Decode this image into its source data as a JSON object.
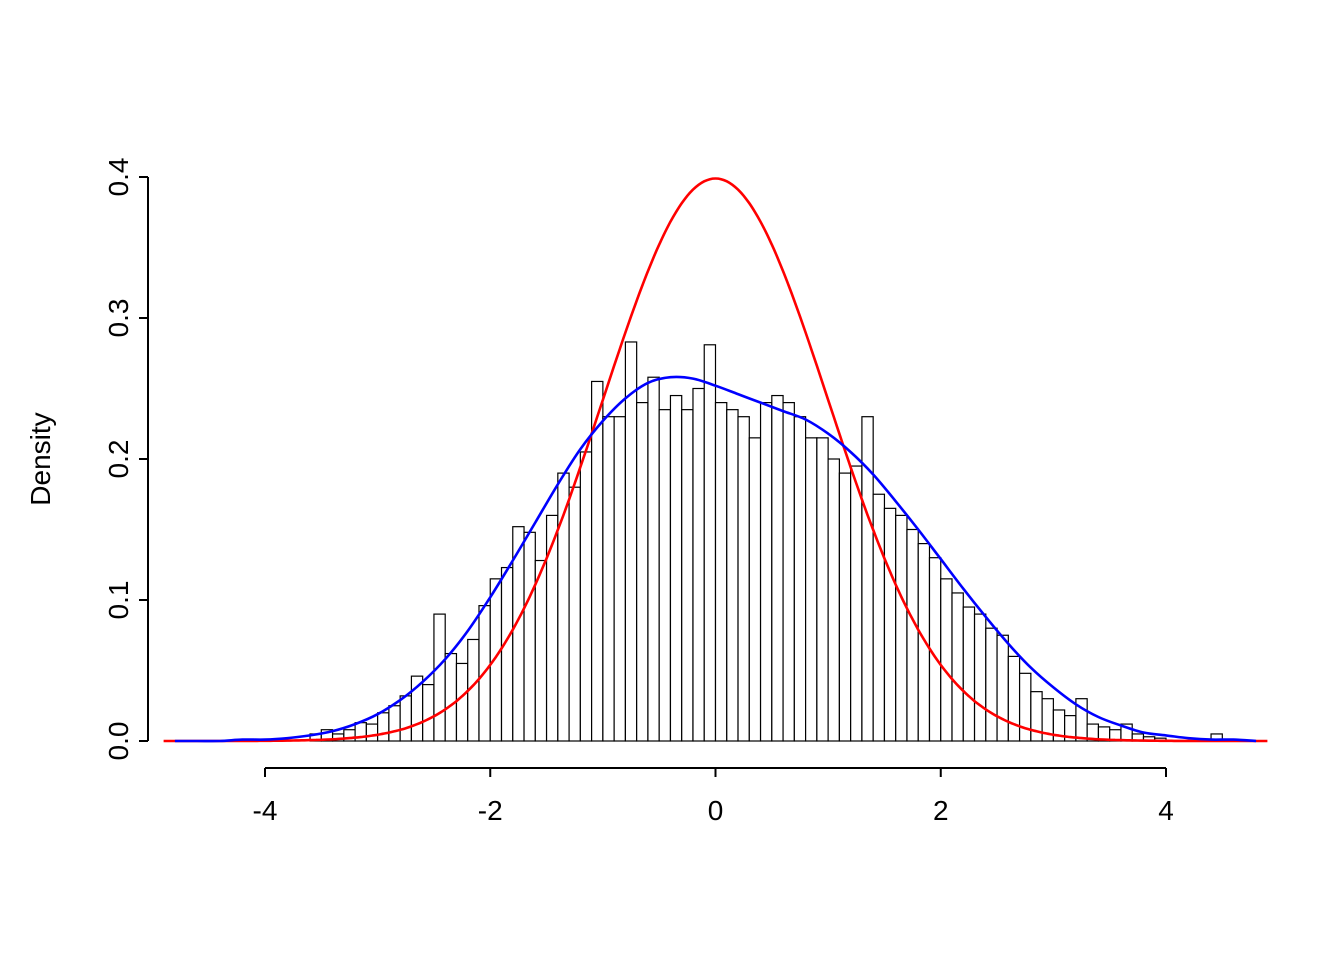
{
  "chart_data": {
    "type": "bar",
    "subtype": "histogram-with-density-curves",
    "title": "",
    "xlabel": "",
    "ylabel": "Density",
    "xlim": [
      -4,
      4
    ],
    "ylim": [
      0,
      0.4
    ],
    "grid": false,
    "legend": "none",
    "x_tick_values": [
      -4,
      -2,
      0,
      2,
      4
    ],
    "x_tick_labels": [
      "-4",
      "-2",
      "0",
      "2",
      "4"
    ],
    "y_tick_values": [
      0.0,
      0.1,
      0.2,
      0.3,
      0.4
    ],
    "y_tick_labels": [
      "0.0",
      "0.1",
      "0.2",
      "0.3",
      "0.4"
    ],
    "histogram": {
      "bin_start": -3.6,
      "bin_width": 0.1,
      "bar_fill": "#ffffff",
      "bar_stroke": "#000000",
      "densities": [
        0.005,
        0.008,
        0.005,
        0.008,
        0.013,
        0.012,
        0.02,
        0.025,
        0.032,
        0.046,
        0.04,
        0.09,
        0.062,
        0.055,
        0.072,
        0.096,
        0.115,
        0.123,
        0.152,
        0.148,
        0.128,
        0.16,
        0.19,
        0.18,
        0.205,
        0.255,
        0.23,
        0.23,
        0.283,
        0.24,
        0.258,
        0.235,
        0.245,
        0.235,
        0.25,
        0.281,
        0.24,
        0.235,
        0.23,
        0.215,
        0.24,
        0.245,
        0.24,
        0.23,
        0.215,
        0.215,
        0.2,
        0.19,
        0.195,
        0.23,
        0.175,
        0.165,
        0.16,
        0.15,
        0.14,
        0.13,
        0.115,
        0.105,
        0.095,
        0.09,
        0.08,
        0.075,
        0.06,
        0.048,
        0.035,
        0.03,
        0.022,
        0.018,
        0.03,
        0.012,
        0.01,
        0.008,
        0.012,
        0.005,
        0.003,
        0.002,
        0.0,
        0.0,
        0.0,
        0.0,
        0.005
      ]
    },
    "curves": [
      {
        "name": "kernel-density-estimate",
        "color": "#0000ff",
        "x_start": -4.8,
        "x_step": 0.2,
        "y": [
          0.0,
          0.0,
          0.0,
          0.001,
          0.001,
          0.002,
          0.004,
          0.007,
          0.012,
          0.019,
          0.029,
          0.042,
          0.058,
          0.078,
          0.102,
          0.128,
          0.155,
          0.182,
          0.207,
          0.227,
          0.243,
          0.254,
          0.258,
          0.257,
          0.252,
          0.246,
          0.24,
          0.234,
          0.228,
          0.218,
          0.205,
          0.189,
          0.17,
          0.15,
          0.129,
          0.108,
          0.088,
          0.069,
          0.052,
          0.038,
          0.026,
          0.017,
          0.011,
          0.006,
          0.004,
          0.002,
          0.001,
          0.001,
          0.0
        ]
      },
      {
        "name": "standard-normal-density",
        "color": "#ff0000",
        "distribution": "normal",
        "mean": 0,
        "sd": 1,
        "peak_density": 0.3989,
        "x_range": [
          -4.9,
          4.9
        ]
      }
    ],
    "colors": {
      "axis": "#000000",
      "background": "#ffffff"
    }
  }
}
